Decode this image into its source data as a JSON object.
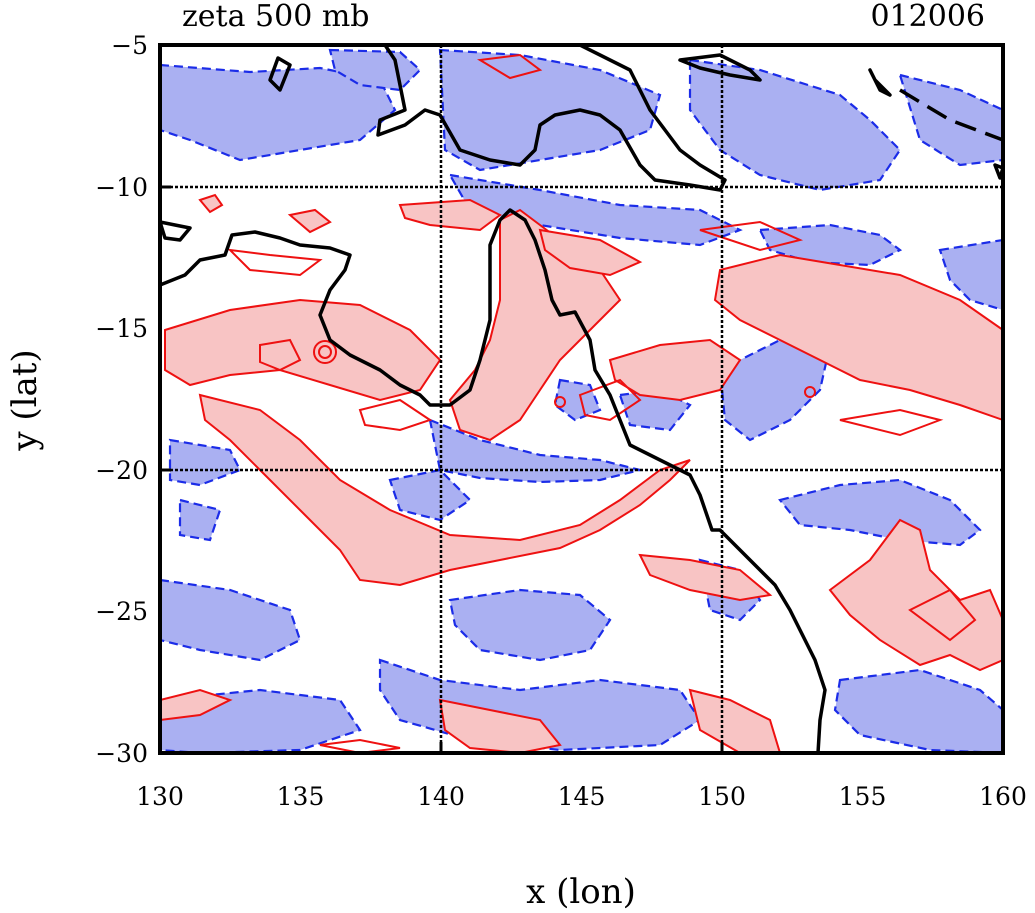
{
  "title_left": "zeta 500 mb",
  "title_right": "012006",
  "x_axis": {
    "label": "x (lon)",
    "range": [
      130,
      160
    ],
    "ticks": [
      "130",
      "135",
      "140",
      "145",
      "150",
      "155",
      "160"
    ],
    "tick_values": [
      130,
      135,
      140,
      145,
      150,
      155,
      160
    ]
  },
  "y_axis": {
    "label": "y (lat)",
    "range": [
      -30,
      -5
    ],
    "ticks": [
      "−5",
      "−10",
      "−15",
      "−20",
      "−25",
      "−30"
    ],
    "tick_values": [
      -5,
      -10,
      -15,
      -20,
      -25,
      -30
    ]
  },
  "grid_lines": {
    "lon": [
      140,
      150
    ],
    "lat": [
      -10,
      -20
    ]
  },
  "colors": {
    "positive_line": "#ee1111",
    "positive_fill": "#f8c4c4",
    "negative_line": "#1b2ce8",
    "negative_fill": "#aab0f2",
    "coastline": "#000000",
    "grid": "#000000"
  }
}
